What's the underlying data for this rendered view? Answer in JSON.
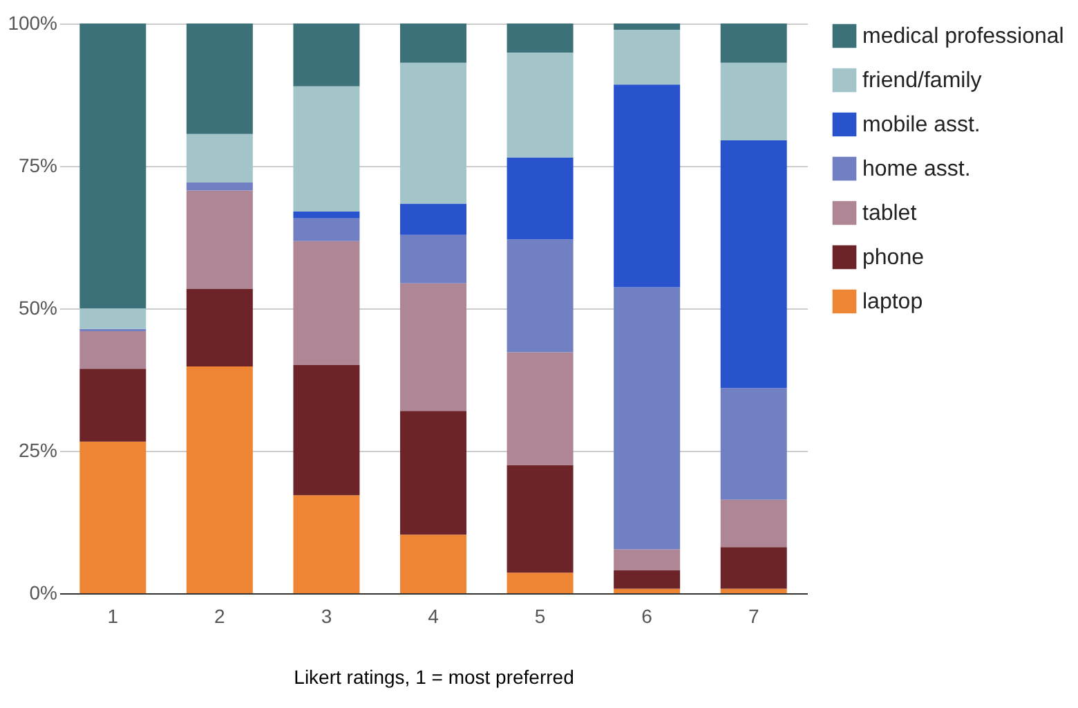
{
  "chart_data": {
    "type": "bar",
    "stacked": true,
    "xlabel": "Likert ratings, 1 = most preferred",
    "categories": [
      "1",
      "2",
      "3",
      "4",
      "5",
      "6",
      "7"
    ],
    "series": [
      {
        "name": "laptop",
        "color": "#ee8534",
        "values": [
          26.6,
          39.8,
          17.2,
          10.3,
          3.6,
          0.8,
          0.8
        ]
      },
      {
        "name": "phone",
        "color": "#6c2429",
        "values": [
          12.8,
          13.6,
          22.9,
          21.7,
          18.9,
          3.2,
          7.3
        ]
      },
      {
        "name": "tablet",
        "color": "#ae8695",
        "values": [
          6.6,
          17.3,
          21.7,
          22.4,
          19.8,
          3.7,
          8.3
        ]
      },
      {
        "name": "home asst.",
        "color": "#717fc3",
        "values": [
          0.4,
          1.4,
          4.0,
          8.5,
          19.8,
          46.0,
          19.6
        ]
      },
      {
        "name": "mobile asst.",
        "color": "#2853cc",
        "values": [
          0,
          0,
          1.2,
          5.5,
          14.4,
          35.6,
          43.5
        ]
      },
      {
        "name": "friend/family",
        "color": "#a3c4c8",
        "values": [
          3.6,
          8.5,
          22.0,
          24.7,
          18.4,
          9.6,
          13.6
        ]
      },
      {
        "name": "medical professional",
        "color": "#3d717a",
        "values": [
          50.0,
          19.4,
          11.0,
          6.9,
          5.1,
          1.1,
          6.9
        ]
      }
    ],
    "ylim": [
      0,
      100
    ],
    "yticks": [
      {
        "value": 0,
        "label": "0%"
      },
      {
        "value": 25,
        "label": "25%"
      },
      {
        "value": 50,
        "label": "50%"
      },
      {
        "value": 75,
        "label": "75%"
      },
      {
        "value": 100,
        "label": "100%"
      }
    ],
    "grid": "y",
    "legend": "right"
  }
}
